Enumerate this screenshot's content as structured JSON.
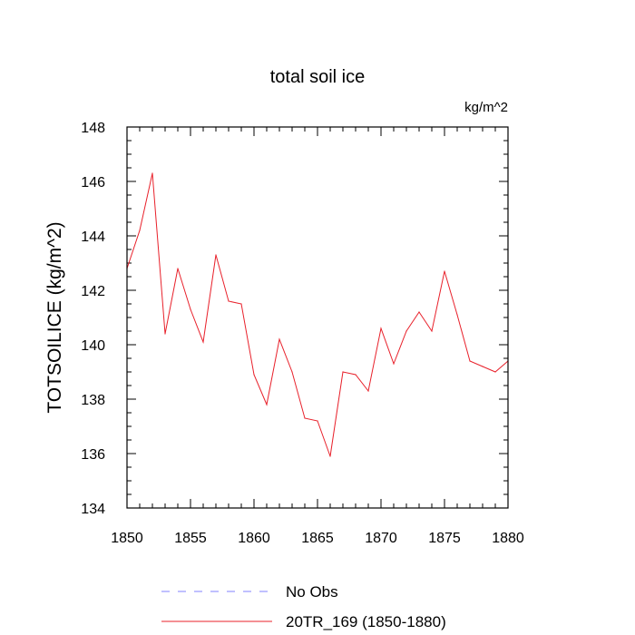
{
  "chart_data": {
    "type": "line",
    "title": "total soil ice",
    "units": "kg/m^2",
    "xlabel": "",
    "ylabel": "TOTSOILICE  (kg/m^2)",
    "xlim": [
      1850,
      1880
    ],
    "ylim": [
      134,
      148
    ],
    "x_ticks": [
      1850,
      1855,
      1860,
      1865,
      1870,
      1875,
      1880
    ],
    "y_ticks": [
      134,
      136,
      138,
      140,
      142,
      144,
      146,
      148
    ],
    "grid": false,
    "legend_position": "bottom",
    "series": [
      {
        "name": "No Obs",
        "color": "#8080ff",
        "dash": "dashed",
        "x": [],
        "values": []
      },
      {
        "name": "20TR_169 (1850-1880)",
        "color": "#e8202a",
        "dash": "solid",
        "x": [
          1850,
          1851,
          1852,
          1853,
          1854,
          1855,
          1856,
          1857,
          1858,
          1859,
          1860,
          1861,
          1862,
          1863,
          1864,
          1865,
          1866,
          1867,
          1868,
          1869,
          1870,
          1871,
          1872,
          1873,
          1874,
          1875,
          1876,
          1877,
          1878,
          1879,
          1880
        ],
        "values": [
          142.8,
          144.2,
          146.3,
          140.4,
          142.8,
          141.3,
          140.1,
          143.3,
          141.6,
          141.5,
          138.9,
          137.8,
          140.2,
          139.0,
          137.3,
          137.2,
          135.9,
          139.0,
          138.9,
          138.3,
          140.6,
          139.3,
          140.5,
          141.2,
          140.5,
          142.7,
          141.1,
          139.4,
          139.2,
          139.0,
          139.4
        ]
      }
    ]
  }
}
